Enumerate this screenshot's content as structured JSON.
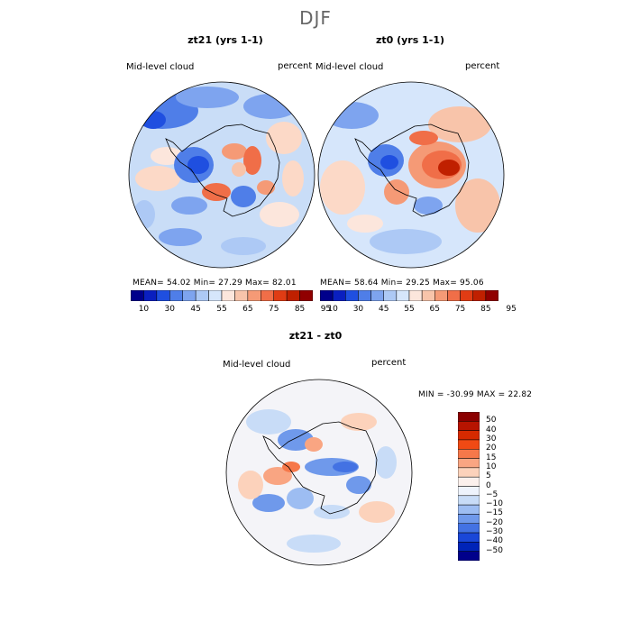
{
  "figure": {
    "title": "DJF",
    "panels": [
      {
        "title": "zt21 (yrs 1-1)",
        "variable_label": "Mid-level cloud",
        "units_label": "percent",
        "stats": {
          "mean_label": "MEAN=",
          "mean": "54.02",
          "min_label": "Min=",
          "min": "27.29",
          "max_label": "Max=",
          "max": "82.01"
        }
      },
      {
        "title": "zt0 (yrs 1-1)",
        "variable_label": "Mid-level cloud",
        "units_label": "percent",
        "stats": {
          "mean_label": "MEAN=",
          "mean": "58.64",
          "min_label": "Min=",
          "min": "29.25",
          "max_label": "Max=",
          "max": "95.06"
        }
      },
      {
        "title": "zt21 - zt0",
        "variable_label": "Mid-level cloud",
        "units_label": "percent",
        "minmax_text": "MIN = -30.99 MAX =  22.82"
      }
    ],
    "colorbar_abs": {
      "colors": [
        "#00008b",
        "#0a1fc0",
        "#1f4fe0",
        "#4f7ee8",
        "#7ea4ef",
        "#adc9f5",
        "#d6e6fb",
        "#fce6dc",
        "#f8c4aa",
        "#f59a76",
        "#f06e48",
        "#e03c14",
        "#c02000",
        "#900000"
      ],
      "labels": [
        "10",
        "30",
        "45",
        "55",
        "65",
        "75",
        "85",
        "95"
      ]
    },
    "colorbar_diff": {
      "colors": [
        "#8b0000",
        "#b71400",
        "#d62a00",
        "#f04a14",
        "#f6784a",
        "#f9a582",
        "#fcd2bb",
        "#fbf0ec",
        "#eef3fc",
        "#c8dcf7",
        "#9dbdf2",
        "#6f99eb",
        "#4372e3",
        "#1a47d8",
        "#0024b8",
        "#00008b"
      ],
      "labels": [
        "50",
        "40",
        "30",
        "20",
        "15",
        "10",
        "5",
        "0",
        "−5",
        "−10",
        "−15",
        "−20",
        "−30",
        "−40",
        "−50"
      ]
    }
  }
}
